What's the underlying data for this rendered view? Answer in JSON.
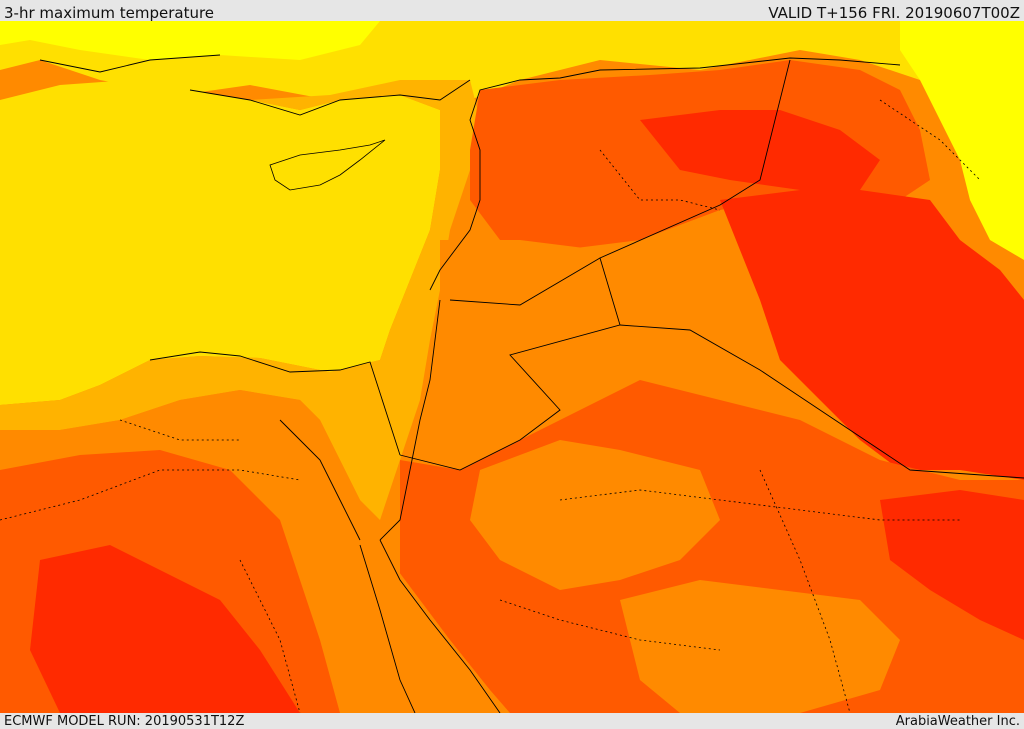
{
  "header": {
    "title": "3-hr maximum temperature",
    "valid": "VALID T+156 FRI. 20190607T00Z"
  },
  "footer": {
    "model_run": "ECMWF MODEL RUN: 20190531T12Z",
    "credit": "ArabiaWeather Inc."
  },
  "map": {
    "colors": {
      "yellow_light": "#ffff00",
      "yellow": "#ffe000",
      "gold": "#ffb300",
      "orange": "#ff8a00",
      "dark_orange": "#ff5a00",
      "red": "#ff2a00",
      "border": "#000000"
    }
  }
}
